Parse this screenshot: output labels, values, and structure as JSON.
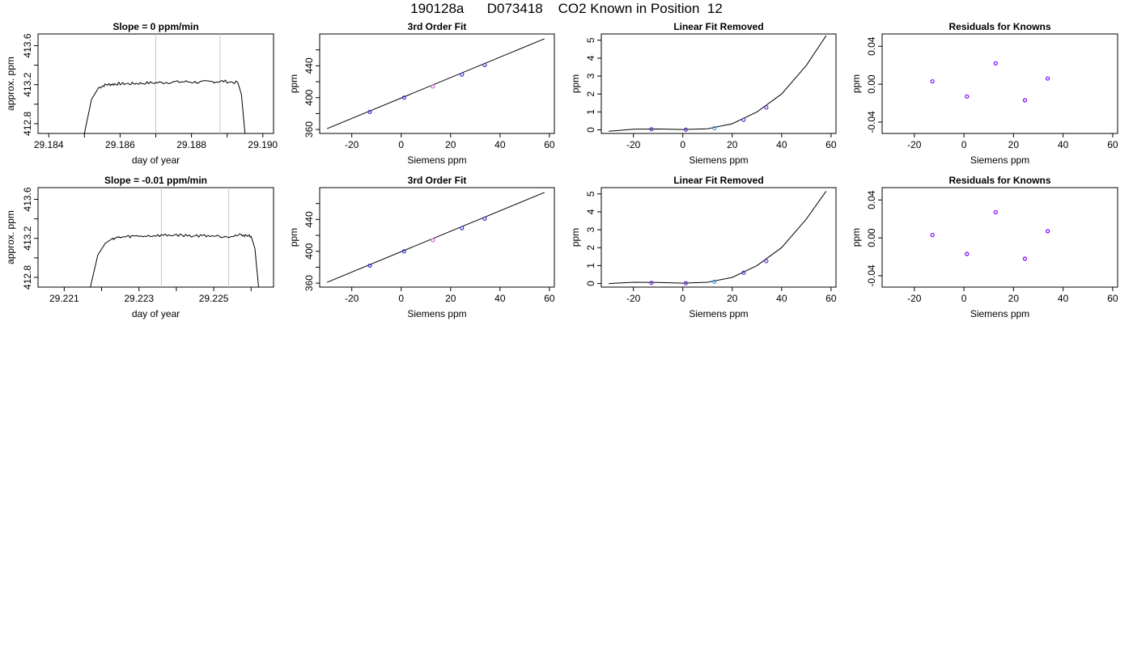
{
  "page_title": "190128a      D073418    CO2 Known in Position  12",
  "chart_data": [
    {
      "type": "line",
      "title": "Slope =  0  ppm/min",
      "xlabel": "day of year",
      "ylabel": "approx. ppm",
      "xlim": [
        29.1837,
        29.1903
      ],
      "ylim": [
        412.7,
        413.72
      ],
      "xticks": [
        29.184,
        29.185,
        29.186,
        29.187,
        29.188,
        29.189,
        29.19
      ],
      "xtick_labels": [
        "29.184",
        "",
        "29.186",
        "",
        "29.188",
        "",
        "29.190"
      ],
      "yticks": [
        412.8,
        413.0,
        413.2,
        413.4,
        413.6
      ],
      "ytick_labels": [
        "412.8",
        "",
        "413.2",
        "",
        "413.6"
      ],
      "vlines": [
        29.187,
        29.1888
      ],
      "series": [
        {
          "x": [
            29.185,
            29.1852,
            29.1854,
            29.1856,
            29.1858,
            29.186,
            29.1863,
            29.1866,
            29.187,
            29.1874,
            29.1878,
            29.1882,
            29.1886,
            29.1889,
            29.1893,
            29.1894,
            29.1895
          ],
          "y": [
            412.7,
            413.05,
            413.17,
            413.2,
            413.205,
            413.21,
            413.21,
            413.215,
            413.22,
            413.225,
            413.23,
            413.225,
            413.23,
            413.235,
            413.22,
            413.1,
            412.7
          ]
        }
      ]
    },
    {
      "type": "scatter",
      "title": "3rd Order Fit",
      "xlabel": "Siemens ppm",
      "ylabel": "ppm",
      "xlim": [
        -33,
        62
      ],
      "ylim": [
        355,
        480
      ],
      "xticks": [
        -20,
        0,
        20,
        40,
        60
      ],
      "yticks": [
        360,
        380,
        400,
        420,
        440,
        460
      ],
      "ytick_labels": [
        "360",
        "",
        "400",
        "",
        "440",
        ""
      ],
      "fit_line": {
        "x": [
          -30,
          58
        ],
        "y": [
          361,
          474
        ]
      },
      "points": {
        "x": [
          -12.7,
          1.2,
          12.8,
          24.6,
          33.8
        ],
        "y": [
          382,
          400,
          414,
          429,
          441
        ]
      },
      "point_colors": [
        "#3333cc",
        "#3333cc",
        "#cc66cc",
        "#3333cc",
        "#3333cc"
      ]
    },
    {
      "type": "scatter",
      "title": "Linear Fit Removed",
      "xlabel": "Siemens ppm",
      "ylabel": "ppm",
      "xlim": [
        -33,
        62
      ],
      "ylim": [
        -0.2,
        5.35
      ],
      "xticks": [
        -20,
        0,
        20,
        40,
        60
      ],
      "yticks": [
        0,
        1,
        2,
        3,
        4,
        5
      ],
      "curve": {
        "x": [
          -30,
          -20,
          -10,
          0,
          10,
          20,
          30,
          40,
          50,
          58
        ],
        "y": [
          -0.08,
          0.04,
          0.05,
          0.02,
          0.06,
          0.34,
          1.0,
          2.0,
          3.6,
          5.25
        ]
      },
      "points": {
        "x": [
          -12.7,
          1.2,
          12.8,
          24.6,
          33.8
        ],
        "y": [
          0.04,
          0.01,
          0.09,
          0.56,
          1.25
        ]
      },
      "point_colors": [
        "#6633cc",
        "#6633cc",
        "#3399dd",
        "#6633cc",
        "#6633cc"
      ]
    },
    {
      "type": "scatter",
      "title": "Residuals for Knowns",
      "xlabel": "Siemens ppm",
      "ylabel": "ppm",
      "xlim": [
        -33,
        62
      ],
      "ylim": [
        -0.052,
        0.053
      ],
      "xticks": [
        -20,
        0,
        20,
        40,
        60
      ],
      "yticks": [
        -0.04,
        0.0,
        0.04
      ],
      "ytick_labels": [
        "-0.04",
        "0.00",
        "0.04"
      ],
      "points": {
        "x": [
          -12.7,
          1.2,
          12.8,
          24.6,
          33.8
        ],
        "y": [
          0.003,
          -0.013,
          0.022,
          -0.017,
          0.006
        ]
      },
      "point_colors": [
        "#7f00ff",
        "#7f00ff",
        "#7f00ff",
        "#7f00ff",
        "#7f00ff"
      ]
    },
    {
      "type": "line",
      "title": "Slope =  -0.01  ppm/min",
      "xlabel": "day of year",
      "ylabel": "approx. ppm",
      "xlim": [
        29.2203,
        29.2266
      ],
      "ylim": [
        412.7,
        413.72
      ],
      "xticks": [
        29.221,
        29.222,
        29.223,
        29.224,
        29.225,
        29.226
      ],
      "xtick_labels": [
        "29.221",
        "",
        "29.223",
        "",
        "29.225",
        ""
      ],
      "yticks": [
        412.8,
        413.0,
        413.2,
        413.4,
        413.6
      ],
      "ytick_labels": [
        "412.8",
        "",
        "413.2",
        "",
        "413.6"
      ],
      "vlines": [
        29.2236,
        29.2254
      ],
      "series": [
        {
          "x": [
            29.2217,
            29.2219,
            29.2221,
            29.2223,
            29.2225,
            29.2228,
            29.2232,
            29.2236,
            29.224,
            29.2244,
            29.2248,
            29.2252,
            29.2255,
            29.2258,
            29.226,
            29.2261,
            29.2262
          ],
          "y": [
            412.7,
            413.03,
            413.15,
            413.2,
            413.21,
            413.22,
            413.225,
            413.23,
            413.235,
            413.225,
            413.23,
            413.22,
            413.225,
            413.235,
            413.22,
            413.1,
            412.7
          ]
        }
      ]
    },
    {
      "type": "scatter",
      "title": "3rd Order Fit",
      "xlabel": "Siemens ppm",
      "ylabel": "ppm",
      "xlim": [
        -33,
        62
      ],
      "ylim": [
        355,
        480
      ],
      "xticks": [
        -20,
        0,
        20,
        40,
        60
      ],
      "yticks": [
        360,
        380,
        400,
        420,
        440,
        460
      ],
      "ytick_labels": [
        "360",
        "",
        "400",
        "",
        "440",
        ""
      ],
      "fit_line": {
        "x": [
          -30,
          58
        ],
        "y": [
          361,
          474
        ]
      },
      "points": {
        "x": [
          -12.7,
          1.2,
          12.8,
          24.6,
          33.8
        ],
        "y": [
          382,
          400,
          414,
          429,
          441
        ]
      },
      "point_colors": [
        "#3333cc",
        "#3333cc",
        "#cc66cc",
        "#3333cc",
        "#3333cc"
      ]
    },
    {
      "type": "scatter",
      "title": "Linear Fit Removed",
      "xlabel": "Siemens ppm",
      "ylabel": "ppm",
      "xlim": [
        -33,
        62
      ],
      "ylim": [
        -0.2,
        5.35
      ],
      "xticks": [
        -20,
        0,
        20,
        40,
        60
      ],
      "yticks": [
        0,
        1,
        2,
        3,
        4,
        5
      ],
      "curve": {
        "x": [
          -30,
          -20,
          -10,
          0,
          10,
          20,
          30,
          40,
          50,
          58
        ],
        "y": [
          0.0,
          0.07,
          0.06,
          0.02,
          0.07,
          0.34,
          1.0,
          2.0,
          3.6,
          5.15
        ]
      },
      "points": {
        "x": [
          -12.7,
          1.2,
          12.8,
          24.6,
          33.8
        ],
        "y": [
          0.04,
          0.02,
          0.1,
          0.6,
          1.25
        ]
      },
      "point_colors": [
        "#6633cc",
        "#6633cc",
        "#3399dd",
        "#6633cc",
        "#6633cc"
      ]
    },
    {
      "type": "scatter",
      "title": "Residuals for Knowns",
      "xlabel": "Siemens ppm",
      "ylabel": "ppm",
      "xlim": [
        -33,
        62
      ],
      "ylim": [
        -0.052,
        0.053
      ],
      "xticks": [
        -20,
        0,
        20,
        40,
        60
      ],
      "yticks": [
        -0.04,
        0.0,
        0.04
      ],
      "ytick_labels": [
        "-0.04",
        "0.00",
        "0.04"
      ],
      "points": {
        "x": [
          -12.7,
          1.2,
          12.8,
          24.6,
          33.8
        ],
        "y": [
          0.003,
          -0.017,
          0.027,
          -0.022,
          0.007
        ]
      },
      "point_colors": [
        "#7f00ff",
        "#7f00ff",
        "#7f00ff",
        "#7f00ff",
        "#7f00ff"
      ]
    }
  ]
}
